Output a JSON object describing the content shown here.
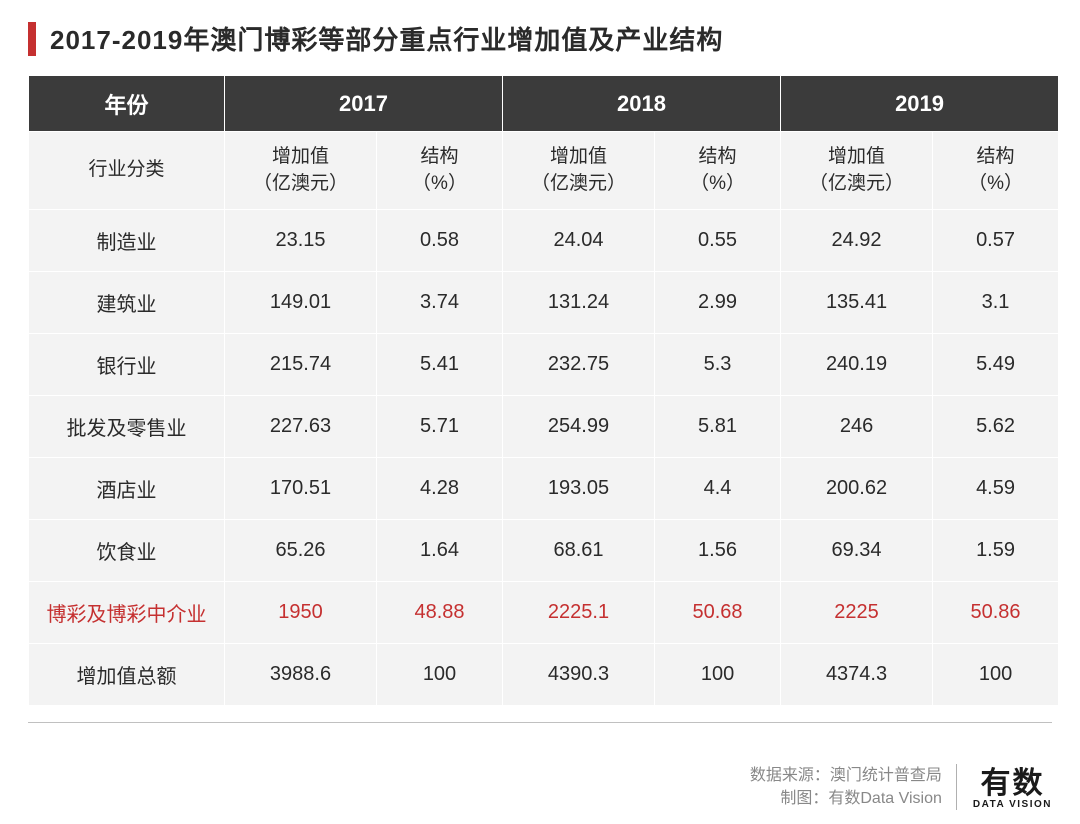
{
  "title": "2017-2019年澳门博彩等部分重点行业增加值及产业结构",
  "table": {
    "header": {
      "year_label": "年份",
      "years": [
        "2017",
        "2018",
        "2019"
      ],
      "category_label": "行业分类",
      "value_label_l1": "增加值",
      "value_label_l2": "（亿澳元）",
      "pct_label_l1": "结构",
      "pct_label_l2": "（%）"
    },
    "rows": [
      {
        "label": "制造业",
        "v2017": "23.15",
        "p2017": "0.58",
        "v2018": "24.04",
        "p2018": "0.55",
        "v2019": "24.92",
        "p2019": "0.57",
        "highlight": false
      },
      {
        "label": "建筑业",
        "v2017": "149.01",
        "p2017": "3.74",
        "v2018": "131.24",
        "p2018": "2.99",
        "v2019": "135.41",
        "p2019": "3.1",
        "highlight": false
      },
      {
        "label": "银行业",
        "v2017": "215.74",
        "p2017": "5.41",
        "v2018": "232.75",
        "p2018": "5.3",
        "v2019": "240.19",
        "p2019": "5.49",
        "highlight": false
      },
      {
        "label": "批发及零售业",
        "v2017": "227.63",
        "p2017": "5.71",
        "v2018": "254.99",
        "p2018": "5.81",
        "v2019": "246",
        "p2019": "5.62",
        "highlight": false
      },
      {
        "label": "酒店业",
        "v2017": "170.51",
        "p2017": "4.28",
        "v2018": "193.05",
        "p2018": "4.4",
        "v2019": "200.62",
        "p2019": "4.59",
        "highlight": false
      },
      {
        "label": "饮食业",
        "v2017": "65.26",
        "p2017": "1.64",
        "v2018": "68.61",
        "p2018": "1.56",
        "v2019": "69.34",
        "p2019": "1.59",
        "highlight": false
      },
      {
        "label": "博彩及博彩中介业",
        "v2017": "1950",
        "p2017": "48.88",
        "v2018": "2225.1",
        "p2018": "50.68",
        "v2019": "2225",
        "p2019": "50.86",
        "highlight": true
      },
      {
        "label": "增加值总额",
        "v2017": "3988.6",
        "p2017": "100",
        "v2018": "4390.3",
        "p2018": "100",
        "v2019": "4374.3",
        "p2019": "100",
        "highlight": false
      }
    ],
    "colors": {
      "header_bg": "#3b3b3b",
      "header_text": "#ffffff",
      "body_bg": "#f3f3f3",
      "body_text": "#2a2a2a",
      "border": "#ffffff",
      "highlight_text": "#c53030",
      "accent": "#c53030"
    }
  },
  "footer": {
    "source_label": "数据来源：",
    "source_value": "澳门统计普查局",
    "chart_label": "制图：",
    "chart_value": "有数Data Vision",
    "logo_cn": "有数",
    "logo_en": "DATA VISION"
  }
}
